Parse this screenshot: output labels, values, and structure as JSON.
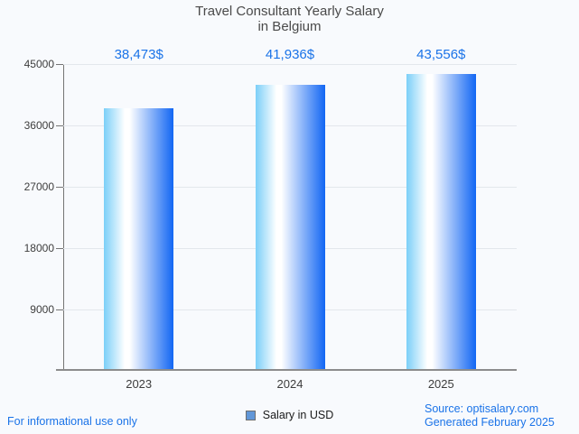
{
  "page": {
    "background": "#f8fafd"
  },
  "chart_data": {
    "type": "bar",
    "title_line1": "Travel Consultant Yearly Salary",
    "title_line2": "in Belgium",
    "categories": [
      "2023",
      "2024",
      "2025"
    ],
    "series": [
      {
        "name": "Salary in USD",
        "values": [
          38473,
          41936,
          43556
        ]
      }
    ],
    "value_labels": [
      "38,473$",
      "41,936$",
      "43,556$"
    ],
    "yticks": [
      45000,
      36000,
      27000,
      18000,
      9000
    ],
    "ylim": [
      0,
      45000
    ],
    "grid": true,
    "legend_position": "bottom",
    "bar_gradient": [
      "#7bcff8",
      "#ffffff",
      "#1266f3"
    ],
    "value_label_color": "#1a73e8"
  },
  "legend": {
    "label": "Salary in USD",
    "swatch_color": "#6197d8"
  },
  "footer": {
    "left": "For informational use only",
    "source": "Source: optisalary.com",
    "generated": "Generated February 2025",
    "link_color": "#1a73e8"
  }
}
